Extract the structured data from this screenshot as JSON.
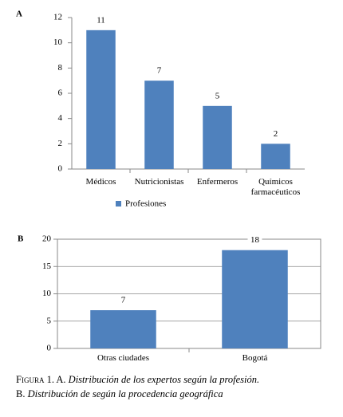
{
  "chart_data": [
    {
      "type": "bar",
      "label": "A",
      "categories": [
        "Médicos",
        "Nutricionistas",
        "Enfermeros",
        "Químicos farmacéuticos"
      ],
      "series": [
        {
          "name": "Profesiones",
          "color": "#4f81bd",
          "values": [
            11,
            7,
            5,
            2
          ]
        }
      ],
      "ylim": [
        0,
        12
      ],
      "yticks": [
        0,
        2,
        4,
        6,
        8,
        10,
        12
      ],
      "grid": false,
      "legend": "bottom"
    },
    {
      "type": "bar",
      "label": "B",
      "categories": [
        "Otras ciudades",
        "Bogotá"
      ],
      "series": [
        {
          "color": "#4f81bd",
          "values": [
            7,
            18
          ]
        }
      ],
      "ylim": [
        0,
        20
      ],
      "yticks": [
        0,
        5,
        10,
        15,
        20
      ],
      "grid": true
    }
  ],
  "caption": {
    "figure": "Figura 1.",
    "a_label": "A.",
    "a_text": "Distribución de los expertos según la profesión.",
    "b_label": "B.",
    "b_text": "Distribución de según la procedencia geográfica"
  }
}
